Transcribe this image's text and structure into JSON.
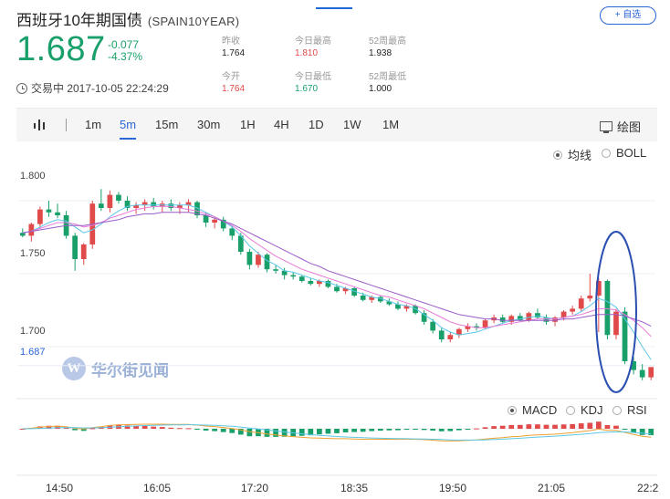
{
  "header": {
    "title": "西班牙10年期国债",
    "code": "(SPAIN10YEAR)",
    "add_label": "+ 自选"
  },
  "quote": {
    "price": "1.687",
    "change": "-0.077",
    "change_pct": "-4.37%",
    "status": "交易中 2017-10-05 22:24:29"
  },
  "stats": [
    {
      "label": "昨收",
      "value": "1.764",
      "tone": "normal"
    },
    {
      "label": "今日最高",
      "value": "1.810",
      "tone": "red"
    },
    {
      "label": "52周最高",
      "value": "1.938",
      "tone": "normal"
    },
    {
      "label": "今开",
      "value": "1.764",
      "tone": "red"
    },
    {
      "label": "今日最低",
      "value": "1.670",
      "tone": "green"
    },
    {
      "label": "52周最低",
      "value": "1.000",
      "tone": "normal"
    }
  ],
  "toolbar": {
    "intervals": [
      "1m",
      "5m",
      "15m",
      "30m",
      "1H",
      "4H",
      "1D",
      "1W",
      "1M"
    ],
    "active": "5m",
    "draw_label": "绘图"
  },
  "indicators": {
    "main": [
      {
        "label": "均线",
        "selected": true
      },
      {
        "label": "BOLL",
        "selected": false
      }
    ],
    "sub": [
      {
        "label": "MACD",
        "selected": true
      },
      {
        "label": "KDJ",
        "selected": false
      },
      {
        "label": "RSI",
        "selected": false
      }
    ]
  },
  "watermark": {
    "logo": "W",
    "text": "华尔街见闻"
  },
  "colors": {
    "up": "#e04a4a",
    "down": "#19a06a",
    "accent": "#2a66d8",
    "ma_fast": "#5cc8e8",
    "ma_mid": "#e87ad8",
    "ma_slow": "#9a5cc8",
    "annotation": "#2a4fb0"
  },
  "chart_data": {
    "type": "candlestick",
    "y_ticks": [
      "1.800",
      "1.750",
      "1.700"
    ],
    "current_value_label": "1.687",
    "x_ticks": [
      "14:50",
      "16:05",
      "17:20",
      "18:35",
      "19:50",
      "21:05",
      "22:2"
    ],
    "ylim": [
      1.665,
      1.83
    ],
    "candles": [
      [
        1.778,
        1.781,
        1.775,
        1.776
      ],
      [
        1.776,
        1.785,
        1.772,
        1.784
      ],
      [
        1.784,
        1.796,
        1.781,
        1.794
      ],
      [
        1.794,
        1.8,
        1.789,
        1.792
      ],
      [
        1.792,
        1.798,
        1.788,
        1.79
      ],
      [
        1.79,
        1.793,
        1.774,
        1.776
      ],
      [
        1.776,
        1.778,
        1.752,
        1.76
      ],
      [
        1.76,
        1.771,
        1.756,
        1.77
      ],
      [
        1.77,
        1.8,
        1.767,
        1.798
      ],
      [
        1.798,
        1.808,
        1.793,
        1.795
      ],
      [
        1.795,
        1.807,
        1.792,
        1.804
      ],
      [
        1.804,
        1.806,
        1.798,
        1.8
      ],
      [
        1.8,
        1.803,
        1.793,
        1.795
      ],
      [
        1.795,
        1.799,
        1.791,
        1.797
      ],
      [
        1.797,
        1.801,
        1.793,
        1.799
      ],
      [
        1.799,
        1.802,
        1.794,
        1.796
      ],
      [
        1.796,
        1.8,
        1.792,
        1.798
      ],
      [
        1.798,
        1.801,
        1.793,
        1.795
      ],
      [
        1.795,
        1.799,
        1.791,
        1.797
      ],
      [
        1.797,
        1.801,
        1.792,
        1.799
      ],
      [
        1.799,
        1.8,
        1.788,
        1.79
      ],
      [
        1.79,
        1.792,
        1.782,
        1.785
      ],
      [
        1.785,
        1.789,
        1.781,
        1.787
      ],
      [
        1.787,
        1.789,
        1.779,
        1.781
      ],
      [
        1.781,
        1.783,
        1.773,
        1.776
      ],
      [
        1.776,
        1.778,
        1.763,
        1.765
      ],
      [
        1.765,
        1.767,
        1.753,
        1.756
      ],
      [
        1.756,
        1.765,
        1.754,
        1.763
      ],
      [
        1.763,
        1.764,
        1.751,
        1.753
      ],
      [
        1.753,
        1.756,
        1.75,
        1.752
      ],
      [
        1.752,
        1.754,
        1.746,
        1.749
      ],
      [
        1.749,
        1.751,
        1.746,
        1.748
      ],
      [
        1.748,
        1.749,
        1.744,
        1.745
      ],
      [
        1.745,
        1.747,
        1.742,
        1.743
      ],
      [
        1.743,
        1.746,
        1.741,
        1.745
      ],
      [
        1.745,
        1.746,
        1.74,
        1.741
      ],
      [
        1.741,
        1.743,
        1.737,
        1.738
      ],
      [
        1.738,
        1.741,
        1.736,
        1.74
      ],
      [
        1.74,
        1.741,
        1.734,
        1.735
      ],
      [
        1.735,
        1.737,
        1.731,
        1.732
      ],
      [
        1.732,
        1.735,
        1.73,
        1.734
      ],
      [
        1.734,
        1.735,
        1.73,
        1.731
      ],
      [
        1.731,
        1.733,
        1.728,
        1.729
      ],
      [
        1.729,
        1.731,
        1.725,
        1.726
      ],
      [
        1.726,
        1.729,
        1.724,
        1.728
      ],
      [
        1.728,
        1.729,
        1.722,
        1.723
      ],
      [
        1.723,
        1.725,
        1.715,
        1.717
      ],
      [
        1.717,
        1.719,
        1.709,
        1.711
      ],
      [
        1.711,
        1.713,
        1.703,
        1.705
      ],
      [
        1.705,
        1.71,
        1.703,
        1.708
      ],
      [
        1.708,
        1.713,
        1.706,
        1.712
      ],
      [
        1.712,
        1.716,
        1.71,
        1.714
      ],
      [
        1.714,
        1.716,
        1.711,
        1.713
      ],
      [
        1.713,
        1.719,
        1.712,
        1.718
      ],
      [
        1.718,
        1.722,
        1.716,
        1.72
      ],
      [
        1.72,
        1.722,
        1.716,
        1.717
      ],
      [
        1.717,
        1.722,
        1.715,
        1.721
      ],
      [
        1.721,
        1.723,
        1.717,
        1.718
      ],
      [
        1.718,
        1.724,
        1.717,
        1.723
      ],
      [
        1.723,
        1.726,
        1.719,
        1.72
      ],
      [
        1.72,
        1.722,
        1.715,
        1.717
      ],
      [
        1.717,
        1.721,
        1.714,
        1.72
      ],
      [
        1.72,
        1.725,
        1.718,
        1.724
      ],
      [
        1.724,
        1.728,
        1.722,
        1.726
      ],
      [
        1.726,
        1.735,
        1.724,
        1.733
      ],
      [
        1.733,
        1.75,
        1.731,
        1.735
      ],
      [
        1.735,
        1.747,
        1.71,
        1.745
      ],
      [
        1.745,
        1.746,
        1.705,
        1.708
      ],
      [
        1.708,
        1.726,
        1.705,
        1.724
      ],
      [
        1.724,
        1.727,
        1.688,
        1.69
      ],
      [
        1.69,
        1.693,
        1.681,
        1.684
      ],
      [
        1.684,
        1.688,
        1.677,
        1.679
      ],
      [
        1.679,
        1.686,
        1.677,
        1.686
      ]
    ],
    "ma_fast": [
      1.778,
      1.779,
      1.782,
      1.785,
      1.787,
      1.786,
      1.782,
      1.778,
      1.78,
      1.784,
      1.789,
      1.793,
      1.796,
      1.797,
      1.797,
      1.797,
      1.797,
      1.797,
      1.797,
      1.797,
      1.795,
      1.792,
      1.789,
      1.786,
      1.782,
      1.776,
      1.769,
      1.764,
      1.759,
      1.756,
      1.752,
      1.751,
      1.749,
      1.747,
      1.745,
      1.744,
      1.742,
      1.74,
      1.738,
      1.736,
      1.734,
      1.733,
      1.731,
      1.729,
      1.728,
      1.726,
      1.722,
      1.718,
      1.713,
      1.71,
      1.708,
      1.709,
      1.71,
      1.712,
      1.714,
      1.716,
      1.718,
      1.719,
      1.72,
      1.721,
      1.72,
      1.719,
      1.72,
      1.721,
      1.724,
      1.728,
      1.733,
      1.731,
      1.727,
      1.719,
      1.71,
      1.7,
      1.691
    ],
    "ma_mid": [
      1.778,
      1.779,
      1.781,
      1.783,
      1.785,
      1.785,
      1.784,
      1.782,
      1.783,
      1.785,
      1.788,
      1.79,
      1.792,
      1.794,
      1.795,
      1.796,
      1.796,
      1.796,
      1.795,
      1.794,
      1.793,
      1.791,
      1.789,
      1.786,
      1.783,
      1.779,
      1.774,
      1.77,
      1.766,
      1.762,
      1.759,
      1.756,
      1.753,
      1.751,
      1.749,
      1.747,
      1.745,
      1.743,
      1.741,
      1.739,
      1.737,
      1.735,
      1.734,
      1.732,
      1.73,
      1.728,
      1.726,
      1.723,
      1.72,
      1.717,
      1.715,
      1.714,
      1.713,
      1.713,
      1.714,
      1.715,
      1.716,
      1.717,
      1.718,
      1.719,
      1.719,
      1.719,
      1.72,
      1.721,
      1.722,
      1.724,
      1.726,
      1.726,
      1.725,
      1.722,
      1.718,
      1.713,
      1.707
    ],
    "ma_slow": [
      1.778,
      1.779,
      1.78,
      1.781,
      1.782,
      1.783,
      1.783,
      1.783,
      1.784,
      1.785,
      1.786,
      1.787,
      1.789,
      1.79,
      1.791,
      1.791,
      1.792,
      1.792,
      1.792,
      1.792,
      1.791,
      1.79,
      1.788,
      1.786,
      1.784,
      1.781,
      1.778,
      1.775,
      1.772,
      1.769,
      1.766,
      1.763,
      1.76,
      1.757,
      1.755,
      1.752,
      1.75,
      1.748,
      1.746,
      1.744,
      1.742,
      1.74,
      1.738,
      1.736,
      1.734,
      1.732,
      1.73,
      1.728,
      1.726,
      1.724,
      1.722,
      1.721,
      1.72,
      1.719,
      1.719,
      1.718,
      1.718,
      1.718,
      1.718,
      1.718,
      1.718,
      1.718,
      1.719,
      1.719,
      1.72,
      1.721,
      1.722,
      1.722,
      1.722,
      1.721,
      1.719,
      1.717,
      1.714
    ]
  }
}
